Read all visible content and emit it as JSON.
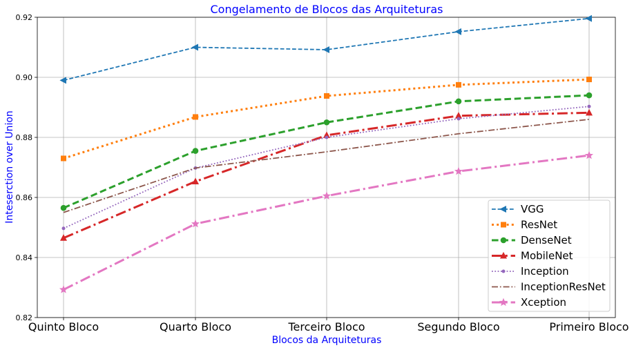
{
  "chart_data": {
    "type": "line",
    "title": "Congelamento de Blocos das Arquiteturas",
    "xlabel": "Blocos da Arquiteturas",
    "ylabel": "Inteserction over Union",
    "categories": [
      "Quinto Bloco",
      "Quarto Bloco",
      "Terceiro Bloco",
      "Segundo Bloco",
      "Primeiro Bloco"
    ],
    "ylim": [
      0.82,
      0.92
    ],
    "yticks": [
      "0.82",
      "0.84",
      "0.86",
      "0.88",
      "0.90",
      "0.92"
    ],
    "grid": true,
    "legend_position": "lower-right",
    "text_color": "#0000ff",
    "series": [
      {
        "name": "VGG",
        "color": "#1f77b4",
        "style": "dashed",
        "marker": "triangle-left",
        "width": "normal",
        "values": [
          0.899,
          0.91,
          0.9092,
          0.9152,
          0.9196
        ]
      },
      {
        "name": "ResNet",
        "color": "#ff7f0e",
        "style": "dotted",
        "marker": "square",
        "width": "thick",
        "values": [
          0.873,
          0.8868,
          0.8938,
          0.8975,
          0.8993
        ]
      },
      {
        "name": "DenseNet",
        "color": "#2ca02c",
        "style": "dashed",
        "marker": "circle",
        "width": "thick",
        "values": [
          0.8565,
          0.8755,
          0.885,
          0.892,
          0.894
        ]
      },
      {
        "name": "MobileNet",
        "color": "#d62728",
        "style": "dashdot",
        "marker": "triangle-up",
        "width": "thick",
        "values": [
          0.8465,
          0.8653,
          0.8807,
          0.8872,
          0.8882
        ]
      },
      {
        "name": "Inception",
        "color": "#9467bd",
        "style": "dotted",
        "marker": "small-dot",
        "width": "normal",
        "values": [
          0.8497,
          0.8698,
          0.88,
          0.8862,
          0.8903
        ]
      },
      {
        "name": "InceptionResNet",
        "color": "#8c564b",
        "style": "dashdot",
        "marker": "none",
        "width": "normal",
        "values": [
          0.855,
          0.8698,
          0.8752,
          0.8812,
          0.886
        ]
      },
      {
        "name": "Xception",
        "color": "#e377c2",
        "style": "dashdot",
        "marker": "star",
        "width": "thick",
        "values": [
          0.8293,
          0.8512,
          0.8605,
          0.8687,
          0.874
        ]
      }
    ]
  }
}
